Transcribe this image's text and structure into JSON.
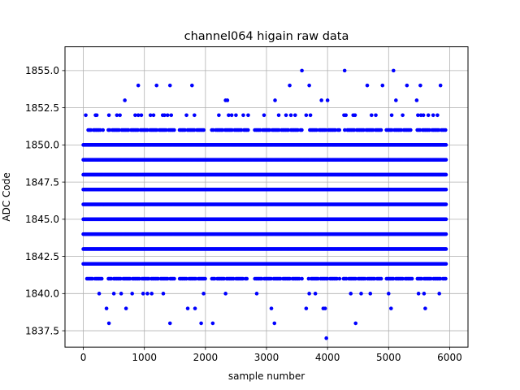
{
  "chart_data": {
    "type": "scatter",
    "title": "channel064 higain raw data",
    "xlabel": "sample number",
    "ylabel": "ADC Code",
    "xlim": [
      -300,
      6300
    ],
    "ylim": [
      1836.4,
      1856.6
    ],
    "xticks": [
      0,
      1000,
      2000,
      3000,
      4000,
      5000,
      6000
    ],
    "xtick_labels": [
      "0",
      "1000",
      "2000",
      "3000",
      "4000",
      "5000",
      "6000"
    ],
    "yticks": [
      1837.5,
      1840.0,
      1842.5,
      1845.0,
      1847.5,
      1850.0,
      1852.5,
      1855.0
    ],
    "ytick_labels": [
      "1837.5",
      "1840.0",
      "1842.5",
      "1845.0",
      "1847.5",
      "1850.0",
      "1852.5",
      "1855.0"
    ],
    "grid": true,
    "legend": "none",
    "marker_color": "#0000ff",
    "sample_range": [
      0,
      5950
    ],
    "dense_levels": [
      1842,
      1843,
      1844,
      1845,
      1846,
      1847,
      1848,
      1849,
      1850
    ],
    "medium_levels": [
      1841,
      1851
    ],
    "sparse_points": {
      "1855": [
        3580,
        4280,
        5080
      ],
      "1854": [
        900,
        1200,
        1420,
        1780,
        3380,
        3700,
        4650,
        4900,
        5300,
        5520,
        5850
      ],
      "1853": [
        680,
        2330,
        2360,
        3140,
        3900,
        4000,
        5120,
        5460
      ],
      "1852": [
        40,
        200,
        220,
        420,
        550,
        600,
        850,
        900,
        950,
        1100,
        1150,
        1300,
        1330,
        1380,
        1440,
        1690,
        1820,
        2220,
        2380,
        2430,
        2500,
        2620,
        2700,
        2960,
        3200,
        3320,
        3400,
        3470,
        3650,
        3720,
        4270,
        4300,
        4420,
        4450,
        4720,
        4790,
        5050,
        5230,
        5480,
        5530,
        5570,
        5650,
        5730,
        5800
      ],
      "1840": [
        260,
        500,
        620,
        800,
        980,
        1050,
        1120,
        1310,
        1970,
        2330,
        2840,
        3700,
        3800,
        4380,
        4550,
        4700,
        5000,
        5490,
        5580,
        5830
      ],
      "1839": [
        380,
        700,
        1710,
        1830,
        3080,
        3650,
        3930,
        3960,
        5040,
        5600
      ],
      "1838": [
        420,
        1420,
        1930,
        2120,
        3130,
        4460
      ],
      "1837": [
        3980
      ]
    },
    "medium_gaps": [
      [
        340,
        400
      ],
      [
        1500,
        1560
      ],
      [
        2000,
        2100
      ],
      [
        2700,
        2800
      ],
      [
        3600,
        3680
      ],
      [
        4200,
        4260
      ],
      [
        4880,
        4950
      ],
      [
        5400,
        5460
      ]
    ]
  }
}
